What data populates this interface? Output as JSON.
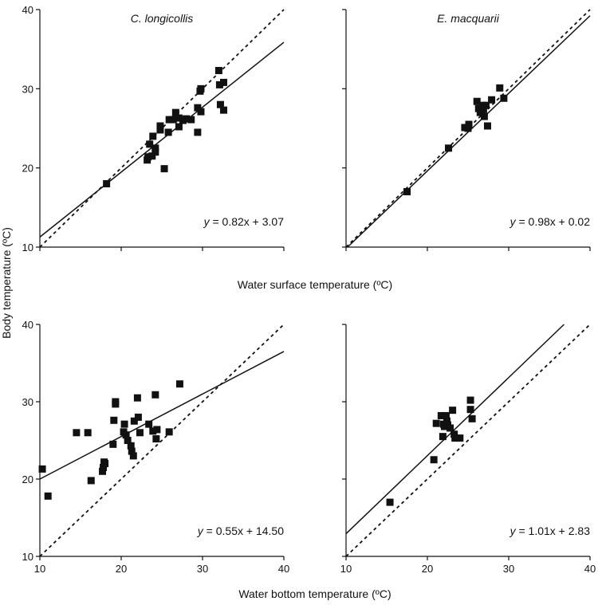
{
  "figure": {
    "ylabel": "Body temperature (ºC)",
    "xlabel_top": "Water surface temperature (ºC)",
    "xlabel_bottom": "Water bottom temperature (ºC)"
  },
  "chart_data": [
    {
      "id": "surface-clongicollis",
      "type": "scatter",
      "title": "C. longicollis",
      "equation": {
        "var": "y",
        "rest": " = 0.82x + 3.07"
      },
      "xlim": [
        10,
        40
      ],
      "ylim": [
        10,
        40
      ],
      "xticks": [
        10,
        20,
        30,
        40
      ],
      "yticks": [
        10,
        20,
        30,
        40
      ],
      "xtick_labels": [],
      "ytick_labels": [
        "10",
        "20",
        "30",
        "40"
      ],
      "fit": {
        "slope": 0.82,
        "intercept": 3.07
      },
      "reference": "y = x (dotted)",
      "points": [
        [
          18.2,
          18.0
        ],
        [
          23.2,
          21.0
        ],
        [
          23.3,
          21.4
        ],
        [
          23.8,
          21.5
        ],
        [
          24.2,
          22.0
        ],
        [
          24.2,
          22.5
        ],
        [
          23.5,
          23.0
        ],
        [
          23.9,
          24.0
        ],
        [
          24.8,
          24.8
        ],
        [
          24.8,
          25.3
        ],
        [
          25.3,
          19.9
        ],
        [
          25.8,
          24.5
        ],
        [
          25.9,
          26.1
        ],
        [
          26.4,
          26.1
        ],
        [
          26.7,
          27.0
        ],
        [
          27.1,
          25.2
        ],
        [
          27.1,
          26.3
        ],
        [
          27.6,
          26.0
        ],
        [
          28.0,
          26.2
        ],
        [
          28.6,
          26.1
        ],
        [
          29.4,
          24.5
        ],
        [
          29.4,
          27.6
        ],
        [
          29.7,
          29.7
        ],
        [
          29.8,
          30.0
        ],
        [
          29.8,
          27.1
        ],
        [
          32.0,
          32.3
        ],
        [
          32.1,
          30.5
        ],
        [
          32.2,
          28.0
        ],
        [
          32.6,
          30.8
        ],
        [
          32.6,
          27.3
        ]
      ]
    },
    {
      "id": "surface-emacquarii",
      "type": "scatter",
      "title": "E. macquarii",
      "equation": {
        "var": "y",
        "rest": " = 0.98x + 0.02"
      },
      "xlim": [
        10,
        40
      ],
      "ylim": [
        10,
        40
      ],
      "xticks": [
        10,
        20,
        30,
        40
      ],
      "yticks": [
        10,
        20,
        30,
        40
      ],
      "xtick_labels": [],
      "ytick_labels": [],
      "fit": {
        "slope": 0.98,
        "intercept": 0.02
      },
      "reference": "y = x (dotted)",
      "points": [
        [
          17.5,
          17.0
        ],
        [
          22.6,
          22.5
        ],
        [
          24.6,
          25.1
        ],
        [
          25.0,
          25.0
        ],
        [
          25.1,
          25.5
        ],
        [
          26.1,
          28.4
        ],
        [
          26.3,
          27.5
        ],
        [
          26.5,
          27.0
        ],
        [
          26.8,
          27.9
        ],
        [
          26.9,
          27.4
        ],
        [
          27.0,
          26.5
        ],
        [
          27.2,
          27.9
        ],
        [
          27.4,
          25.3
        ],
        [
          27.9,
          28.6
        ],
        [
          28.9,
          30.1
        ],
        [
          29.4,
          28.8
        ]
      ]
    },
    {
      "id": "bottom-clongicollis",
      "type": "scatter",
      "title": "",
      "equation": {
        "var": "y",
        "rest": " = 0.55x + 14.50"
      },
      "xlim": [
        10,
        40
      ],
      "ylim": [
        10,
        40
      ],
      "xticks": [
        10,
        20,
        30,
        40
      ],
      "yticks": [
        10,
        20,
        30,
        40
      ],
      "xtick_labels": [
        "10",
        "20",
        "30",
        "40"
      ],
      "ytick_labels": [
        "10",
        "20",
        "30",
        "40"
      ],
      "fit": {
        "slope": 0.55,
        "intercept": 14.5
      },
      "reference": "y = x (dotted)",
      "points": [
        [
          10.3,
          21.3
        ],
        [
          11.0,
          17.8
        ],
        [
          14.5,
          26.0
        ],
        [
          15.9,
          26.0
        ],
        [
          16.3,
          19.8
        ],
        [
          17.7,
          21.0
        ],
        [
          17.8,
          21.5
        ],
        [
          17.9,
          22.2
        ],
        [
          18.0,
          22.0
        ],
        [
          19.0,
          24.5
        ],
        [
          19.1,
          27.6
        ],
        [
          19.3,
          29.7
        ],
        [
          19.3,
          30.0
        ],
        [
          20.4,
          27.1
        ],
        [
          20.3,
          26.1
        ],
        [
          20.6,
          25.7
        ],
        [
          20.8,
          25.0
        ],
        [
          21.2,
          24.3
        ],
        [
          21.3,
          23.6
        ],
        [
          21.5,
          23.0
        ],
        [
          21.6,
          27.5
        ],
        [
          22.1,
          28.0
        ],
        [
          22.0,
          30.5
        ],
        [
          22.3,
          26.0
        ],
        [
          23.4,
          27.1
        ],
        [
          23.9,
          26.2
        ],
        [
          24.2,
          30.9
        ],
        [
          24.3,
          25.2
        ],
        [
          24.4,
          26.4
        ],
        [
          25.9,
          26.1
        ],
        [
          27.2,
          32.3
        ]
      ]
    },
    {
      "id": "bottom-emacquarii",
      "type": "scatter",
      "title": "",
      "equation": {
        "var": "y",
        "rest": " = 1.01x + 2.83"
      },
      "xlim": [
        10,
        40
      ],
      "ylim": [
        10,
        40
      ],
      "xticks": [
        10,
        20,
        30,
        40
      ],
      "yticks": [
        10,
        20,
        30,
        40
      ],
      "xtick_labels": [
        "10",
        "20",
        "30",
        "40"
      ],
      "ytick_labels": [],
      "fit": {
        "slope": 1.01,
        "intercept": 2.83
      },
      "reference": "y = x (dotted)",
      "points": [
        [
          15.4,
          17.0
        ],
        [
          20.8,
          22.5
        ],
        [
          21.1,
          27.2
        ],
        [
          21.7,
          28.2
        ],
        [
          21.9,
          25.5
        ],
        [
          22.0,
          27.1
        ],
        [
          22.1,
          26.8
        ],
        [
          22.3,
          28.2
        ],
        [
          22.4,
          27.5
        ],
        [
          22.5,
          27.0
        ],
        [
          22.8,
          26.6
        ],
        [
          23.1,
          28.9
        ],
        [
          23.3,
          25.8
        ],
        [
          23.4,
          25.3
        ],
        [
          24.0,
          25.3
        ],
        [
          25.3,
          30.2
        ],
        [
          25.3,
          29.0
        ],
        [
          25.5,
          27.8
        ]
      ]
    }
  ]
}
